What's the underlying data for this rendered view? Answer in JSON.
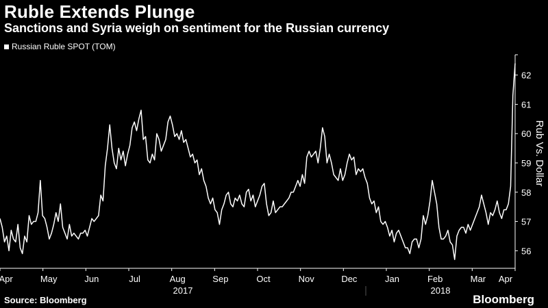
{
  "header": {
    "title": "Ruble Extends Plunge",
    "subtitle": "Sanctions and Syria weigh on sentiment for the Russian currency"
  },
  "footer": {
    "source": "Source: Bloomberg",
    "brand": "Bloomberg"
  },
  "colors": {
    "background": "#000000",
    "line": "#ffffff",
    "divider": "#555555"
  },
  "chart_data": {
    "type": "line",
    "title": "Ruble Extends Plunge",
    "subtitle": "Sanctions and Syria weigh on sentiment for the Russian currency",
    "legend": [
      "Russian Ruble SPOT (TOM)"
    ],
    "legend_position": "top-left",
    "ylabel": "Rub Vs. Dollar",
    "y_axis_side": "right",
    "ylim": [
      55.4,
      62.6
    ],
    "yticks": [
      "56",
      "57",
      "58",
      "59",
      "60",
      "61",
      "62"
    ],
    "grid": false,
    "x_month_labels": [
      "Apr",
      "May",
      "Jun",
      "Jul",
      "Aug",
      "Sep",
      "Oct",
      "Nov",
      "Dec",
      "Jan",
      "Feb",
      "Mar",
      "Apr"
    ],
    "year_labels": [
      "2017",
      "2018"
    ],
    "x_unit": "trading day index",
    "xlim": [
      0,
      264
    ],
    "month_tick_index": [
      0,
      22,
      44,
      66,
      88,
      110,
      132,
      154,
      176,
      198,
      220,
      242,
      264
    ],
    "series": [
      {
        "name": "Russian Ruble SPOT (TOM)",
        "values": [
          57.1,
          56.8,
          56.3,
          56.5,
          56.0,
          56.7,
          56.4,
          56.3,
          56.9,
          56.1,
          55.9,
          56.5,
          56.3,
          57.2,
          56.9,
          57.0,
          57.0,
          57.3,
          58.4,
          57.2,
          57.1,
          56.8,
          56.4,
          56.6,
          56.9,
          57.3,
          57.0,
          57.6,
          56.8,
          56.6,
          56.4,
          56.9,
          56.5,
          56.6,
          56.5,
          56.4,
          56.6,
          56.6,
          56.7,
          56.5,
          56.8,
          57.1,
          57.0,
          57.1,
          57.2,
          57.9,
          57.7,
          58.9,
          59.5,
          60.3,
          59.5,
          59.0,
          58.8,
          59.5,
          59.1,
          59.4,
          58.9,
          59.3,
          59.6,
          60.2,
          60.4,
          60.1,
          60.5,
          60.8,
          59.8,
          59.9,
          59.1,
          59.0,
          59.3,
          59.1,
          60.0,
          59.8,
          59.4,
          59.6,
          59.8,
          60.4,
          60.6,
          60.3,
          59.9,
          60.0,
          59.8,
          60.1,
          59.7,
          59.8,
          59.5,
          59.2,
          59.3,
          59.0,
          59.1,
          58.6,
          58.8,
          58.4,
          58.2,
          57.8,
          57.6,
          57.8,
          57.4,
          57.3,
          56.9,
          57.4,
          57.6,
          57.9,
          58.0,
          57.6,
          57.5,
          57.8,
          57.7,
          57.9,
          57.6,
          57.5,
          58.0,
          58.1,
          57.7,
          57.9,
          57.5,
          57.7,
          57.9,
          58.2,
          58.3,
          57.6,
          57.2,
          57.3,
          57.7,
          57.3,
          57.4,
          57.5,
          57.5,
          57.6,
          57.7,
          57.8,
          58.0,
          58.0,
          58.2,
          58.4,
          58.2,
          58.6,
          58.3,
          59.2,
          59.4,
          59.2,
          59.3,
          59.4,
          59.0,
          59.5,
          60.2,
          59.9,
          59.0,
          59.3,
          59.0,
          58.6,
          58.5,
          58.4,
          58.8,
          58.4,
          58.6,
          59.0,
          59.3,
          59.1,
          59.2,
          58.6,
          58.8,
          58.7,
          58.8,
          58.5,
          58.3,
          57.8,
          57.6,
          57.7,
          57.3,
          57.5,
          57.0,
          56.9,
          57.0,
          56.8,
          56.5,
          56.7,
          56.3,
          56.6,
          56.7,
          56.5,
          56.3,
          56.1,
          56.1,
          55.9,
          56.3,
          56.4,
          56.4,
          56.1,
          56.4,
          57.2,
          56.9,
          57.2,
          57.7,
          58.4,
          58.0,
          57.6,
          56.8,
          56.4,
          56.4,
          56.5,
          56.7,
          56.3,
          56.2,
          55.7,
          56.5,
          56.7,
          56.8,
          56.8,
          56.6,
          56.9,
          56.7,
          56.9,
          57.1,
          57.3,
          57.5,
          57.9,
          57.6,
          57.3,
          56.9,
          57.3,
          57.2,
          57.4,
          57.7,
          57.3,
          57.1,
          57.4,
          57.4,
          57.6,
          58.2,
          61.3,
          62.4
        ]
      }
    ]
  }
}
